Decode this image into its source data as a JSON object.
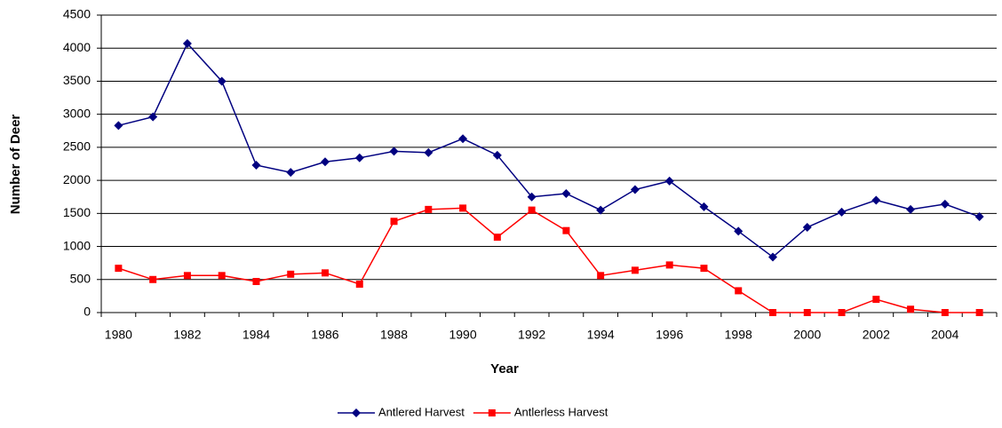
{
  "chart_data": {
    "type": "line",
    "x_label": "Year",
    "y_label": "Number of Deer",
    "categories": [
      "1980",
      null,
      "1982",
      null,
      "1984",
      null,
      "1986",
      null,
      "1988",
      null,
      "1990",
      null,
      "1992",
      null,
      "1994",
      null,
      "1996",
      null,
      "1998",
      null,
      "2000",
      null,
      "2002",
      null,
      "2004",
      null
    ],
    "series": [
      {
        "name": "Antlered Harvest",
        "color": "#000080",
        "marker": "diamond",
        "values": [
          2830,
          2960,
          4070,
          3500,
          2230,
          2120,
          2280,
          2340,
          2440,
          2420,
          2630,
          2380,
          1750,
          1800,
          1550,
          1860,
          1990,
          1600,
          1230,
          840,
          1290,
          1520,
          1700,
          1560,
          1640,
          1450
        ]
      },
      {
        "name": "Antlerless Harvest",
        "color": "#ff0000",
        "marker": "square",
        "values": [
          670,
          500,
          560,
          560,
          470,
          580,
          600,
          430,
          1380,
          1560,
          1580,
          1140,
          1550,
          1240,
          560,
          640,
          720,
          670,
          330,
          0,
          0,
          0,
          200,
          50,
          0,
          0
        ]
      }
    ],
    "ylim": [
      0,
      4500
    ],
    "yticks": [
      0,
      500,
      1000,
      1500,
      2000,
      2500,
      3000,
      3500,
      4000,
      4500
    ],
    "grid": true,
    "legend": "bottom"
  }
}
